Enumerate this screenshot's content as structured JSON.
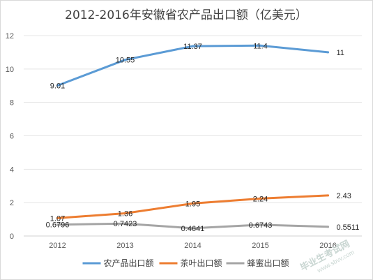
{
  "chart_data": {
    "type": "line",
    "title": "2012-2016年安徽省农产品出口额（亿美元）",
    "categories": [
      "2012",
      "2013",
      "2014",
      "2015",
      "2016"
    ],
    "ylim": [
      0,
      12
    ],
    "yticks": [
      "0",
      "2",
      "4",
      "6",
      "8",
      "10",
      "12"
    ],
    "grid": true,
    "legend_position": "bottom",
    "series": [
      {
        "name": "农产品出口额",
        "color": "#5b9bd5",
        "values": [
          9.01,
          10.55,
          11.37,
          11.4,
          11
        ],
        "labels": [
          "9.01",
          "10.55",
          "11.37",
          "11.4",
          "11"
        ]
      },
      {
        "name": "茶叶出口额",
        "color": "#ed7d31",
        "values": [
          1.07,
          1.36,
          1.95,
          2.24,
          2.43
        ],
        "labels": [
          "1.07",
          "1.36",
          "1.95",
          "2.24",
          "2.43"
        ]
      },
      {
        "name": "蜂蜜出口额",
        "color": "#a5a5a5",
        "values": [
          0.6796,
          0.7423,
          0.4641,
          0.6743,
          0.5511
        ],
        "labels": [
          "0.6796",
          "0.7423",
          "0.4641",
          "0.6743",
          "0.5511"
        ]
      }
    ]
  },
  "watermark": {
    "text": "毕业生考试网",
    "url": "www.sbvv.com"
  }
}
